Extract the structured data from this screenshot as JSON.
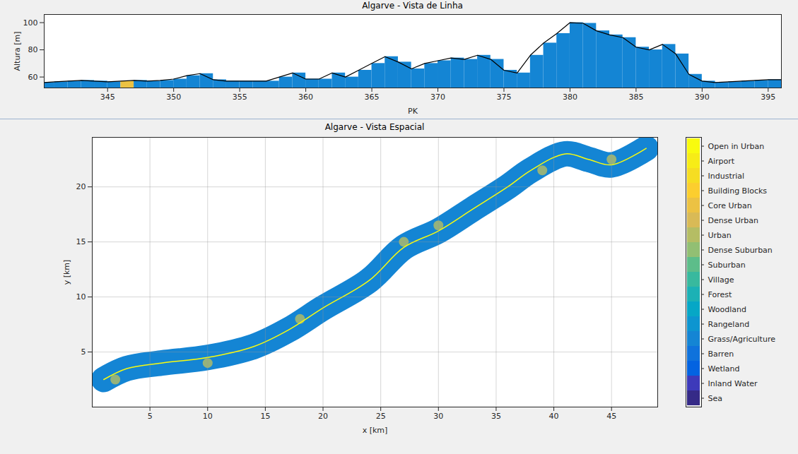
{
  "chart_data": [
    {
      "type": "bar",
      "title": "Algarve - Vista de Linha",
      "xlabel": "PK",
      "ylabel": "Altura [m]",
      "x": [
        340.2,
        341,
        342,
        343,
        344,
        345,
        346,
        347,
        348,
        349,
        350,
        351,
        352,
        353,
        354,
        355,
        356,
        357,
        358,
        359,
        360,
        361,
        362,
        363,
        364,
        365,
        366,
        367,
        368,
        369,
        370,
        371,
        372,
        373,
        374,
        375,
        376,
        377,
        378,
        379,
        380,
        381,
        382,
        383,
        384,
        385,
        386,
        387,
        388,
        389,
        390,
        391,
        392,
        393,
        394,
        395,
        396
      ],
      "values": [
        56,
        56.5,
        57,
        57.5,
        57,
        56.5,
        57,
        57.5,
        57,
        57.5,
        58.5,
        61,
        62.5,
        58,
        57,
        57,
        57,
        57,
        60,
        63,
        58.5,
        58.5,
        63,
        60,
        65,
        70,
        75,
        71,
        66,
        70,
        72,
        74,
        73,
        76,
        73,
        65,
        63,
        76,
        85,
        92,
        100,
        99.5,
        94,
        91,
        89,
        82,
        80,
        84,
        77,
        62,
        57,
        56,
        56.5,
        57,
        57.5,
        58,
        58
      ],
      "classes": [
        "Grass/Agriculture",
        "Grass/Agriculture",
        "Grass/Agriculture",
        "Grass/Agriculture",
        "Grass/Agriculture",
        "Grass/Agriculture",
        "Core Urban",
        "Grass/Agriculture",
        "Grass/Agriculture",
        "Grass/Agriculture",
        "Grass/Agriculture",
        "Grass/Agriculture",
        "Grass/Agriculture",
        "Grass/Agriculture",
        "Grass/Agriculture",
        "Grass/Agriculture",
        "Grass/Agriculture",
        "Grass/Agriculture",
        "Grass/Agriculture",
        "Grass/Agriculture",
        "Grass/Agriculture",
        "Grass/Agriculture",
        "Grass/Agriculture",
        "Grass/Agriculture",
        "Grass/Agriculture",
        "Grass/Agriculture",
        "Grass/Agriculture",
        "Grass/Agriculture",
        "Grass/Agriculture",
        "Grass/Agriculture",
        "Grass/Agriculture",
        "Grass/Agriculture",
        "Grass/Agriculture",
        "Grass/Agriculture",
        "Grass/Agriculture",
        "Grass/Agriculture",
        "Grass/Agriculture",
        "Grass/Agriculture",
        "Grass/Agriculture",
        "Grass/Agriculture",
        "Grass/Agriculture",
        "Grass/Agriculture",
        "Grass/Agriculture",
        "Grass/Agriculture",
        "Grass/Agriculture",
        "Grass/Agriculture",
        "Grass/Agriculture",
        "Grass/Agriculture",
        "Grass/Agriculture",
        "Grass/Agriculture",
        "Grass/Agriculture",
        "Grass/Agriculture",
        "Grass/Agriculture",
        "Grass/Agriculture",
        "Grass/Agriculture",
        "Grass/Agriculture",
        "Grass/Agriculture"
      ],
      "xlim": [
        340.2,
        396
      ],
      "xticks": [
        345,
        350,
        355,
        360,
        365,
        370,
        375,
        380,
        385,
        390,
        395
      ],
      "ylim": [
        52,
        106
      ],
      "yticks": [
        60,
        80,
        100
      ],
      "grid": false
    },
    {
      "type": "map",
      "title": "Algarve - Vista Espacial",
      "xlabel": "x [km]",
      "ylabel": "y [km]",
      "corridor": {
        "class": "Grass/Agriculture",
        "x": [
          1,
          3,
          6,
          10,
          14,
          17,
          20,
          24,
          27,
          30,
          33,
          36,
          38,
          41,
          43,
          45,
          48
        ],
        "y": [
          2.5,
          3.5,
          4,
          4.5,
          5.5,
          7,
          9,
          11.5,
          14.5,
          16,
          18,
          20,
          21.5,
          23,
          22.5,
          22,
          23.5
        ]
      },
      "road": {
        "class": "Open in Urban"
      },
      "urban_areas": {
        "class": "Urban",
        "x": [
          2,
          10,
          18,
          27,
          30,
          39,
          45
        ],
        "y": [
          2.5,
          4,
          8,
          15,
          16.5,
          21.5,
          22.5
        ]
      },
      "xlim": [
        0,
        49
      ],
      "xticks": [
        5,
        10,
        15,
        20,
        25,
        30,
        35,
        40,
        45
      ],
      "ylim": [
        0,
        24.5
      ],
      "yticks": [
        5,
        10,
        15,
        20
      ],
      "grid": true,
      "colorbar": {
        "categories": [
          "Open in Urban",
          "Airport",
          "Industrial",
          "Building Blocks",
          "Core Urban",
          "Dense Urban",
          "Urban",
          "Dense Suburban",
          "Suburban",
          "Village",
          "Forest",
          "Woodland",
          "Rangeland",
          "Grass/Agriculture",
          "Barren",
          "Wetland",
          "Inland Water",
          "Sea"
        ],
        "colors": [
          "#f9fb0e",
          "#f7ec17",
          "#f6dd22",
          "#fcce2e",
          "#ecc243",
          "#d9ba56",
          "#b5bd64",
          "#92bf73",
          "#5dbd8a",
          "#38b99e",
          "#1cb1b5",
          "#06a7c6",
          "#0d95d0",
          "#1485d4",
          "#0f72dc",
          "#0363e1",
          "#3d3aba",
          "#352a87"
        ]
      }
    }
  ]
}
